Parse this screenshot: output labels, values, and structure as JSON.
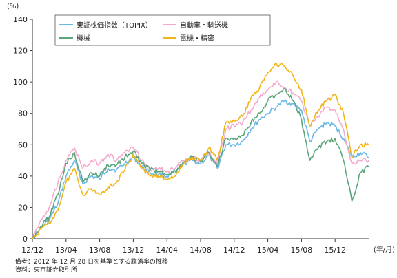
{
  "chart_data": {
    "type": "line",
    "y_unit": "(%)",
    "x_unit": "(年/月)",
    "ylim": [
      0,
      140
    ],
    "y_ticks": [
      0,
      20,
      40,
      60,
      80,
      100,
      120,
      140
    ],
    "x_tick_labels": [
      "12/12",
      "13/04",
      "13/08",
      "13/12",
      "14/04",
      "14/08",
      "14/12",
      "15/04",
      "15/08",
      "15/12"
    ],
    "x_range": [
      "2012-12",
      "2016-04"
    ],
    "grid": false,
    "legend_placement": "top",
    "series": [
      {
        "name": "東証株価指数（TOPIX）",
        "color": "#6bb7e6",
        "points": [
          [
            "2012-12",
            0
          ],
          [
            "2013-01",
            7
          ],
          [
            "2013-02",
            12
          ],
          [
            "2013-03",
            22
          ],
          [
            "2013-04",
            40
          ],
          [
            "2013-05",
            50
          ],
          [
            "2013-06",
            35
          ],
          [
            "2013-07",
            40
          ],
          [
            "2013-08",
            38
          ],
          [
            "2013-09",
            45
          ],
          [
            "2013-10",
            44
          ],
          [
            "2013-11",
            48
          ],
          [
            "2013-12",
            52
          ],
          [
            "2014-01",
            46
          ],
          [
            "2014-02",
            42
          ],
          [
            "2014-03",
            41
          ],
          [
            "2014-04",
            40
          ],
          [
            "2014-05",
            42
          ],
          [
            "2014-06",
            48
          ],
          [
            "2014-07",
            50
          ],
          [
            "2014-08",
            48
          ],
          [
            "2014-09",
            53
          ],
          [
            "2014-10",
            45
          ],
          [
            "2014-11",
            60
          ],
          [
            "2014-12",
            60
          ],
          [
            "2015-01",
            62
          ],
          [
            "2015-02",
            70
          ],
          [
            "2015-03",
            76
          ],
          [
            "2015-04",
            80
          ],
          [
            "2015-05",
            84
          ],
          [
            "2015-06",
            88
          ],
          [
            "2015-07",
            86
          ],
          [
            "2015-08",
            82
          ],
          [
            "2015-09",
            62
          ],
          [
            "2015-10",
            70
          ],
          [
            "2015-11",
            74
          ],
          [
            "2015-12",
            72
          ],
          [
            "2016-01",
            64
          ],
          [
            "2016-02",
            52
          ],
          [
            "2016-03",
            55
          ],
          [
            "2016-04",
            52
          ]
        ]
      },
      {
        "name": "自動車・輸送機",
        "color": "#f4a9cf",
        "points": [
          [
            "2012-12",
            0
          ],
          [
            "2013-01",
            12
          ],
          [
            "2013-02",
            20
          ],
          [
            "2013-03",
            35
          ],
          [
            "2013-04",
            50
          ],
          [
            "2013-05",
            58
          ],
          [
            "2013-06",
            45
          ],
          [
            "2013-07",
            50
          ],
          [
            "2013-08",
            48
          ],
          [
            "2013-09",
            54
          ],
          [
            "2013-10",
            50
          ],
          [
            "2013-11",
            55
          ],
          [
            "2013-12",
            58
          ],
          [
            "2014-01",
            50
          ],
          [
            "2014-02",
            44
          ],
          [
            "2014-03",
            45
          ],
          [
            "2014-04",
            43
          ],
          [
            "2014-05",
            45
          ],
          [
            "2014-06",
            50
          ],
          [
            "2014-07",
            52
          ],
          [
            "2014-08",
            50
          ],
          [
            "2014-09",
            55
          ],
          [
            "2014-10",
            48
          ],
          [
            "2014-11",
            70
          ],
          [
            "2014-12",
            72
          ],
          [
            "2015-01",
            74
          ],
          [
            "2015-02",
            82
          ],
          [
            "2015-03",
            90
          ],
          [
            "2015-04",
            95
          ],
          [
            "2015-05",
            100
          ],
          [
            "2015-06",
            96
          ],
          [
            "2015-07",
            93
          ],
          [
            "2015-08",
            88
          ],
          [
            "2015-09",
            72
          ],
          [
            "2015-10",
            78
          ],
          [
            "2015-11",
            84
          ],
          [
            "2015-12",
            82
          ],
          [
            "2016-01",
            70
          ],
          [
            "2016-02",
            48
          ],
          [
            "2016-03",
            50
          ],
          [
            "2016-04",
            50
          ]
        ]
      },
      {
        "name": "機械",
        "color": "#5aa57a",
        "points": [
          [
            "2012-12",
            0
          ],
          [
            "2013-01",
            8
          ],
          [
            "2013-02",
            14
          ],
          [
            "2013-03",
            28
          ],
          [
            "2013-04",
            48
          ],
          [
            "2013-05",
            55
          ],
          [
            "2013-06",
            36
          ],
          [
            "2013-07",
            42
          ],
          [
            "2013-08",
            40
          ],
          [
            "2013-09",
            47
          ],
          [
            "2013-10",
            47
          ],
          [
            "2013-11",
            52
          ],
          [
            "2013-12",
            56
          ],
          [
            "2014-01",
            48
          ],
          [
            "2014-02",
            44
          ],
          [
            "2014-03",
            43
          ],
          [
            "2014-04",
            41
          ],
          [
            "2014-05",
            43
          ],
          [
            "2014-06",
            49
          ],
          [
            "2014-07",
            52
          ],
          [
            "2014-08",
            49
          ],
          [
            "2014-09",
            55
          ],
          [
            "2014-10",
            46
          ],
          [
            "2014-11",
            64
          ],
          [
            "2014-12",
            64
          ],
          [
            "2015-01",
            66
          ],
          [
            "2015-02",
            74
          ],
          [
            "2015-03",
            80
          ],
          [
            "2015-04",
            88
          ],
          [
            "2015-05",
            92
          ],
          [
            "2015-06",
            96
          ],
          [
            "2015-07",
            88
          ],
          [
            "2015-08",
            76
          ],
          [
            "2015-09",
            50
          ],
          [
            "2015-10",
            58
          ],
          [
            "2015-11",
            62
          ],
          [
            "2015-12",
            64
          ],
          [
            "2016-01",
            50
          ],
          [
            "2016-02",
            24
          ],
          [
            "2016-03",
            42
          ],
          [
            "2016-04",
            46
          ]
        ]
      },
      {
        "name": "電機・精密",
        "color": "#f2b517",
        "points": [
          [
            "2012-12",
            0
          ],
          [
            "2013-01",
            6
          ],
          [
            "2013-02",
            10
          ],
          [
            "2013-03",
            18
          ],
          [
            "2013-04",
            36
          ],
          [
            "2013-05",
            45
          ],
          [
            "2013-06",
            28
          ],
          [
            "2013-07",
            32
          ],
          [
            "2013-08",
            28
          ],
          [
            "2013-09",
            33
          ],
          [
            "2013-10",
            36
          ],
          [
            "2013-11",
            44
          ],
          [
            "2013-12",
            54
          ],
          [
            "2014-01",
            45
          ],
          [
            "2014-02",
            40
          ],
          [
            "2014-03",
            40
          ],
          [
            "2014-04",
            38
          ],
          [
            "2014-05",
            40
          ],
          [
            "2014-06",
            48
          ],
          [
            "2014-07",
            52
          ],
          [
            "2014-08",
            50
          ],
          [
            "2014-09",
            58
          ],
          [
            "2014-10",
            50
          ],
          [
            "2014-11",
            74
          ],
          [
            "2014-12",
            75
          ],
          [
            "2015-01",
            78
          ],
          [
            "2015-02",
            90
          ],
          [
            "2015-03",
            96
          ],
          [
            "2015-04",
            106
          ],
          [
            "2015-05",
            112
          ],
          [
            "2015-06",
            110
          ],
          [
            "2015-07",
            104
          ],
          [
            "2015-08",
            95
          ],
          [
            "2015-09",
            72
          ],
          [
            "2015-10",
            82
          ],
          [
            "2015-11",
            88
          ],
          [
            "2015-12",
            92
          ],
          [
            "2016-01",
            80
          ],
          [
            "2016-02",
            52
          ],
          [
            "2016-03",
            60
          ],
          [
            "2016-04",
            60
          ]
        ]
      }
    ]
  },
  "notes": {
    "line1": "備考：2012 年 12 月 28 日を基準とする騰落率の推移",
    "line2": "資料：東京証券取引所"
  }
}
